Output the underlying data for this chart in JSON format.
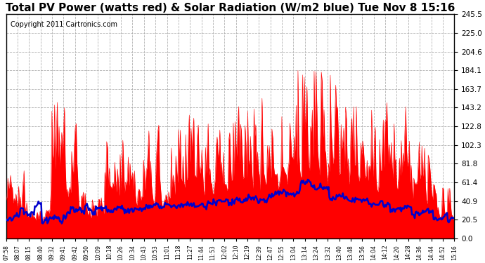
{
  "title": "Total PV Power (watts red) & Solar Radiation (W/m2 blue) Tue Nov 8 15:16",
  "copyright": "Copyright 2011 Cartronics.com",
  "ylim": [
    0.0,
    245.5
  ],
  "yticks": [
    0.0,
    20.5,
    40.9,
    61.4,
    81.8,
    102.3,
    122.8,
    143.2,
    163.7,
    184.1,
    204.6,
    225.0,
    245.5
  ],
  "xtick_labels": [
    "07:58",
    "08:07",
    "08:15",
    "08:40",
    "09:32",
    "09:41",
    "09:42",
    "09:50",
    "10:09",
    "10:18",
    "10:26",
    "10:34",
    "10:43",
    "10:53",
    "11:01",
    "11:18",
    "11:27",
    "11:44",
    "11:53",
    "12:02",
    "12:10",
    "12:19",
    "12:39",
    "12:47",
    "12:55",
    "13:04",
    "13:14",
    "13:24",
    "13:32",
    "13:40",
    "13:48",
    "13:56",
    "14:04",
    "14:12",
    "14:20",
    "14:28",
    "14:36",
    "14:44",
    "14:52",
    "15:16"
  ],
  "background_color": "#ffffff",
  "plot_bg_color": "#ffffff",
  "red_color": "#ff0000",
  "blue_color": "#0000cc",
  "grid_color": "#aaaaaa",
  "title_fontsize": 11,
  "copyright_fontsize": 7,
  "figwidth": 6.9,
  "figheight": 3.75,
  "dpi": 100
}
